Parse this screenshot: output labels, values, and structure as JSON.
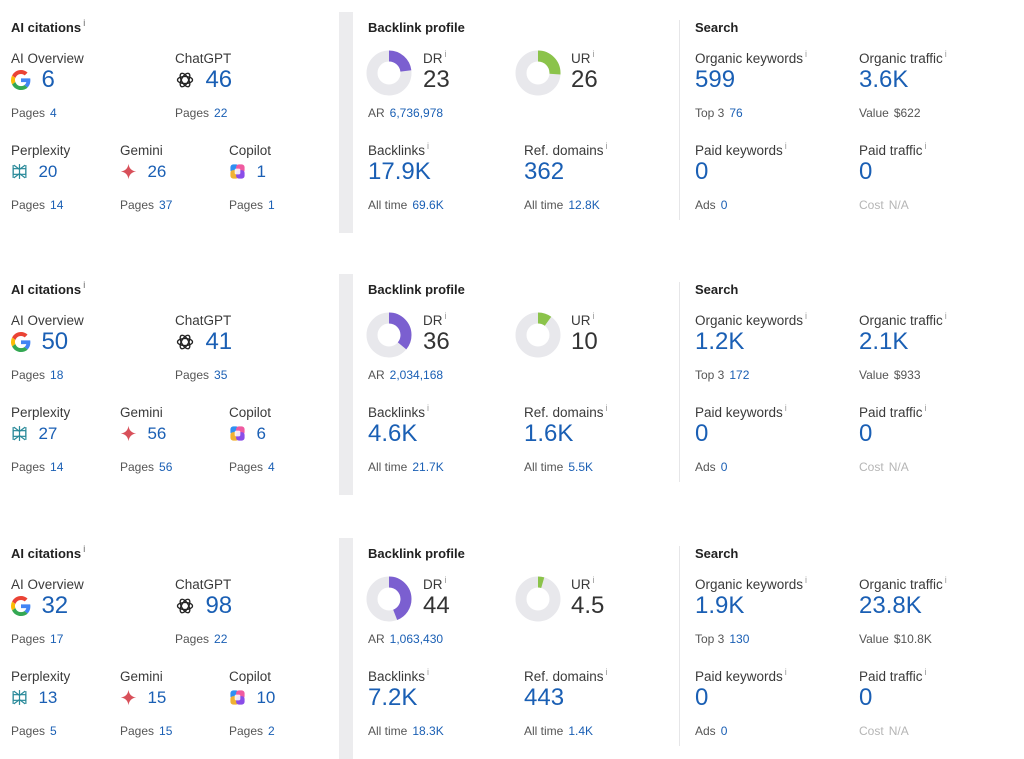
{
  "labels": {
    "ai_citations": "AI citations",
    "backlink_profile": "Backlink profile",
    "search": "Search",
    "ai_overview": "AI Overview",
    "chatgpt": "ChatGPT",
    "perplexity": "Perplexity",
    "gemini": "Gemini",
    "copilot": "Copilot",
    "pages": "Pages",
    "dr": "DR",
    "ur": "UR",
    "ar": "AR",
    "backlinks": "Backlinks",
    "ref_domains": "Ref. domains",
    "all_time": "All time",
    "organic_keywords": "Organic keywords",
    "organic_traffic": "Organic traffic",
    "top3": "Top 3",
    "value": "Value",
    "paid_keywords": "Paid keywords",
    "paid_traffic": "Paid traffic",
    "ads": "Ads",
    "cost": "Cost",
    "info_mark": "i"
  },
  "colors": {
    "dr_ring": "#7b5fd0",
    "ur_ring": "#8bc34a",
    "ring_track": "#e8e8ec",
    "link_blue": "#1a5fb4"
  },
  "icons": {
    "ai_overview": "google-icon",
    "chatgpt": "chatgpt-icon",
    "perplexity": "perplexity-icon",
    "gemini": "gemini-icon",
    "copilot": "copilot-icon"
  },
  "rows": [
    {
      "ai": {
        "ai_overview": {
          "value": "6",
          "pages": "4"
        },
        "chatgpt": {
          "value": "46",
          "pages": "22"
        },
        "perplexity": {
          "value": "20",
          "pages": "14"
        },
        "gemini": {
          "value": "26",
          "pages": "37"
        },
        "copilot": {
          "value": "1",
          "pages": "1"
        }
      },
      "backlink": {
        "dr": "23",
        "dr_ratio": 0.23,
        "ur": "26",
        "ur_ratio": 0.26,
        "ar": "6,736,978",
        "backlinks": "17.9K",
        "backlinks_all_time": "69.6K",
        "ref_domains": "362",
        "ref_domains_all_time": "12.8K"
      },
      "search": {
        "organic_keywords": "599",
        "top3": "76",
        "organic_traffic": "3.6K",
        "value": "$622",
        "paid_keywords": "0",
        "ads": "0",
        "paid_traffic": "0",
        "cost": "N/A"
      }
    },
    {
      "ai": {
        "ai_overview": {
          "value": "50",
          "pages": "18"
        },
        "chatgpt": {
          "value": "41",
          "pages": "35"
        },
        "perplexity": {
          "value": "27",
          "pages": "14"
        },
        "gemini": {
          "value": "56",
          "pages": "56"
        },
        "copilot": {
          "value": "6",
          "pages": "4"
        }
      },
      "backlink": {
        "dr": "36",
        "dr_ratio": 0.36,
        "ur": "10",
        "ur_ratio": 0.1,
        "ar": "2,034,168",
        "backlinks": "4.6K",
        "backlinks_all_time": "21.7K",
        "ref_domains": "1.6K",
        "ref_domains_all_time": "5.5K"
      },
      "search": {
        "organic_keywords": "1.2K",
        "top3": "172",
        "organic_traffic": "2.1K",
        "value": "$933",
        "paid_keywords": "0",
        "ads": "0",
        "paid_traffic": "0",
        "cost": "N/A"
      }
    },
    {
      "ai": {
        "ai_overview": {
          "value": "32",
          "pages": "17"
        },
        "chatgpt": {
          "value": "98",
          "pages": "22"
        },
        "perplexity": {
          "value": "13",
          "pages": "5"
        },
        "gemini": {
          "value": "15",
          "pages": "15"
        },
        "copilot": {
          "value": "10",
          "pages": "2"
        }
      },
      "backlink": {
        "dr": "44",
        "dr_ratio": 0.44,
        "ur": "4.5",
        "ur_ratio": 0.045,
        "ar": "1,063,430",
        "backlinks": "7.2K",
        "backlinks_all_time": "18.3K",
        "ref_domains": "443",
        "ref_domains_all_time": "1.4K"
      },
      "search": {
        "organic_keywords": "1.9K",
        "top3": "130",
        "organic_traffic": "23.8K",
        "value": "$10.8K",
        "paid_keywords": "0",
        "ads": "0",
        "paid_traffic": "0",
        "cost": "N/A"
      }
    }
  ]
}
